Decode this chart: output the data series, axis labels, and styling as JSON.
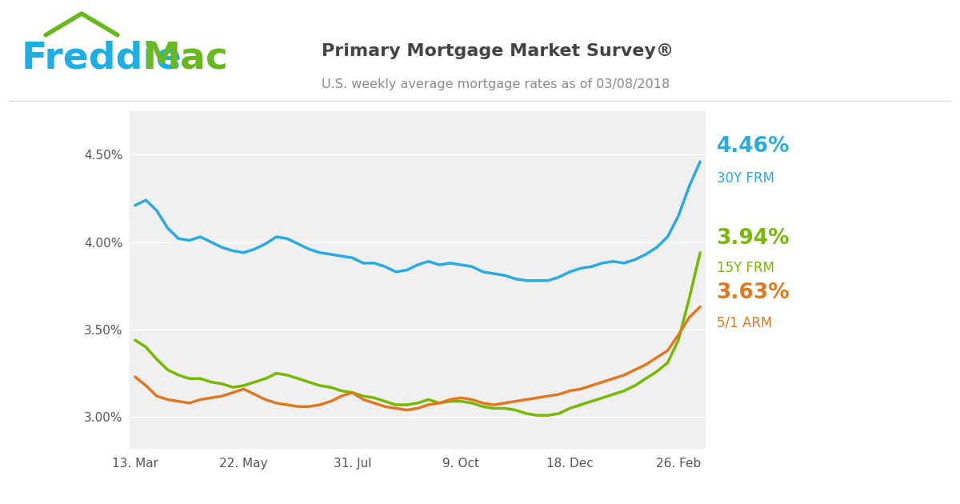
{
  "title": "Primary Mortgage Market Survey®",
  "subtitle": "U.S. weekly average mortgage rates as of 03/08/2018",
  "freddie_blue": "#1daee3",
  "freddie_green": "#6ab820",
  "line_30y_color": "#29abe2",
  "line_15y_color": "#76b900",
  "line_arm_color": "#e07820",
  "plot_bg": "#f0f0f0",
  "label_30y": "4.46%",
  "label_30y_name": "30Y FRM",
  "label_15y": "3.94%",
  "label_15y_name": "15Y FRM",
  "label_arm": "3.63%",
  "label_arm_name": "5/1 ARM",
  "x_labels": [
    "13. Mar",
    "22. May",
    "31. Jul",
    "9. Oct",
    "18. Dec",
    "26. Feb"
  ],
  "x_tick_pos": [
    0,
    10,
    20,
    30,
    40,
    50
  ],
  "ylim": [
    2.82,
    4.75
  ],
  "yticks": [
    3.0,
    3.5,
    4.0,
    4.5
  ],
  "rate_30y": [
    4.21,
    4.24,
    4.18,
    4.08,
    4.02,
    4.01,
    4.03,
    4.0,
    3.97,
    3.95,
    3.94,
    3.96,
    3.99,
    4.03,
    4.02,
    3.99,
    3.96,
    3.94,
    3.93,
    3.92,
    3.91,
    3.88,
    3.88,
    3.86,
    3.83,
    3.84,
    3.87,
    3.89,
    3.87,
    3.88,
    3.87,
    3.86,
    3.83,
    3.82,
    3.81,
    3.79,
    3.78,
    3.78,
    3.78,
    3.8,
    3.83,
    3.85,
    3.86,
    3.88,
    3.89,
    3.88,
    3.9,
    3.93,
    3.97,
    4.03,
    4.15,
    4.32,
    4.46
  ],
  "rate_15y": [
    3.44,
    3.4,
    3.33,
    3.27,
    3.24,
    3.22,
    3.22,
    3.2,
    3.19,
    3.17,
    3.18,
    3.2,
    3.22,
    3.25,
    3.24,
    3.22,
    3.2,
    3.18,
    3.17,
    3.15,
    3.14,
    3.12,
    3.11,
    3.09,
    3.07,
    3.07,
    3.08,
    3.1,
    3.08,
    3.09,
    3.09,
    3.08,
    3.06,
    3.05,
    3.05,
    3.04,
    3.02,
    3.01,
    3.01,
    3.02,
    3.05,
    3.07,
    3.09,
    3.11,
    3.13,
    3.15,
    3.18,
    3.22,
    3.26,
    3.31,
    3.44,
    3.68,
    3.94
  ],
  "rate_arm": [
    3.23,
    3.18,
    3.12,
    3.1,
    3.09,
    3.08,
    3.1,
    3.11,
    3.12,
    3.14,
    3.16,
    3.13,
    3.1,
    3.08,
    3.07,
    3.06,
    3.06,
    3.07,
    3.09,
    3.12,
    3.14,
    3.1,
    3.08,
    3.06,
    3.05,
    3.04,
    3.05,
    3.07,
    3.08,
    3.1,
    3.11,
    3.1,
    3.08,
    3.07,
    3.08,
    3.09,
    3.1,
    3.11,
    3.12,
    3.13,
    3.15,
    3.16,
    3.18,
    3.2,
    3.22,
    3.24,
    3.27,
    3.3,
    3.34,
    3.38,
    3.47,
    3.57,
    3.63
  ]
}
